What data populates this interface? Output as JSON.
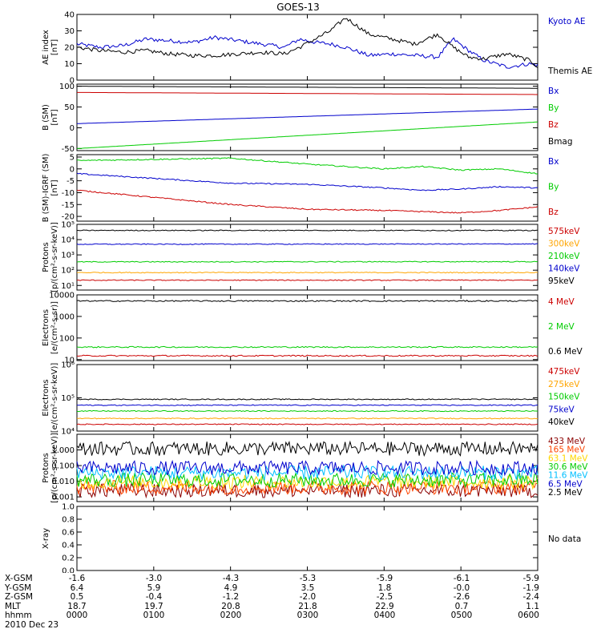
{
  "title": "GOES-13",
  "panels": [
    {
      "ylabel": [
        "AE index",
        "[nT]"
      ],
      "ylim": [
        0,
        40
      ],
      "ticks": [
        0,
        10,
        20,
        30,
        40
      ],
      "tick_labels": [
        "0",
        "10",
        "20",
        "30",
        "40"
      ],
      "scale": "linear",
      "legend": [
        {
          "label": "Kyoto AE",
          "color": "#0000cc"
        },
        {
          "label": "Themis AE",
          "color": "#000000"
        }
      ]
    },
    {
      "ylabel": [
        "B (SM)",
        "[nT]"
      ],
      "ylim": [
        -55,
        105
      ],
      "ticks": [
        -50,
        0,
        50,
        100
      ],
      "tick_labels": [
        "-50",
        "0",
        "50",
        "100"
      ],
      "scale": "linear",
      "legend": [
        {
          "label": "Bx",
          "color": "#0000cc"
        },
        {
          "label": "By",
          "color": "#00cc00"
        },
        {
          "label": "Bz",
          "color": "#cc0000"
        },
        {
          "label": "Bmag",
          "color": "#000000"
        }
      ]
    },
    {
      "ylabel": [
        "B (SM)-IGRF (SM)",
        "[nT]"
      ],
      "ylim": [
        -22,
        6
      ],
      "ticks": [
        -20,
        -15,
        -10,
        -5,
        0,
        5
      ],
      "tick_labels": [
        "-20",
        "-15",
        "-10",
        "-5",
        "0",
        "5"
      ],
      "scale": "linear",
      "legend": [
        {
          "label": "Bx",
          "color": "#0000cc"
        },
        {
          "label": "By",
          "color": "#00cc00"
        },
        {
          "label": "Bz",
          "color": "#cc0000"
        }
      ]
    },
    {
      "ylabel": [
        "Protons",
        "[p/(cm²-s-sr-keV)]"
      ],
      "ylim": [
        5,
        100000
      ],
      "ticks": [
        10,
        100,
        1000,
        10000,
        100000
      ],
      "tick_labels": [
        "10¹",
        "10²",
        "10³",
        "10⁴",
        "10⁵"
      ],
      "scale": "log",
      "legend": [
        {
          "label": "575keV",
          "color": "#cc0000"
        },
        {
          "label": "300keV",
          "color": "#ffa500"
        },
        {
          "label": "210keV",
          "color": "#00cc00"
        },
        {
          "label": "140keV",
          "color": "#0000cc"
        },
        {
          "label": "95keV",
          "color": "#000000"
        }
      ]
    },
    {
      "ylabel": [
        "Electrons",
        "[e/(cm²-s-sr)]"
      ],
      "ylim": [
        9,
        10000
      ],
      "ticks": [
        10,
        100,
        1000,
        10000
      ],
      "tick_labels": [
        "10",
        "100",
        "1000",
        "10000"
      ],
      "scale": "log",
      "legend": [
        {
          "label": "4 MeV",
          "color": "#cc0000"
        },
        {
          "label": "2 MeV",
          "color": "#00cc00"
        },
        {
          "label": "0.6 MeV",
          "color": "#000000"
        }
      ]
    },
    {
      "ylabel": [
        "Electrons",
        "[e/(cm²-s-sr-keV)]"
      ],
      "ylim": [
        10000,
        1000000
      ],
      "ticks": [
        10000,
        100000,
        1000000
      ],
      "tick_labels": [
        "10⁴",
        "10⁵",
        "10⁶"
      ],
      "scale": "log",
      "legend": [
        {
          "label": "475keV",
          "color": "#cc0000"
        },
        {
          "label": "275keV",
          "color": "#ffa500"
        },
        {
          "label": "150keV",
          "color": "#00cc00"
        },
        {
          "label": "75keV",
          "color": "#0000cc"
        },
        {
          "label": "40keV",
          "color": "#000000"
        }
      ]
    },
    {
      "ylabel": [
        "Protons",
        "[p/(cm²-s-sr-keV)]"
      ],
      "ylim": [
        0.0005,
        10
      ],
      "ticks": [
        0.001,
        0.01,
        0.1,
        1
      ],
      "tick_labels": [
        "0.001",
        "0.010",
        "0.100",
        "1.000"
      ],
      "scale": "log",
      "legend": [
        {
          "label": "433 MeV",
          "color": "#8b0000"
        },
        {
          "label": "165 MeV",
          "color": "#ff4500"
        },
        {
          "label": "63.1 MeV",
          "color": "#ffd700"
        },
        {
          "label": "30.6 MeV",
          "color": "#00cc00"
        },
        {
          "label": "11.6 MeV",
          "color": "#00bfff"
        },
        {
          "label": "6.5 MeV",
          "color": "#0000cc"
        },
        {
          "label": "2.5 MeV",
          "color": "#000000"
        }
      ]
    },
    {
      "ylabel": [
        "X-ray",
        ""
      ],
      "ylim": [
        0,
        1
      ],
      "ticks": [
        0,
        0.2,
        0.4,
        0.6,
        0.8,
        1.0
      ],
      "tick_labels": [
        "0.0",
        "0.2",
        "0.4",
        "0.6",
        "0.8",
        "1.0"
      ],
      "scale": "linear",
      "legend": [
        {
          "label": "No data",
          "color": "#000000"
        }
      ]
    }
  ],
  "chart_data": {
    "type": "line",
    "title": "GOES-13",
    "x_range_hours": [
      0,
      6
    ],
    "panels": [
      {
        "series": [
          {
            "name": "Kyoto AE",
            "x": [
              0,
              0.3,
              0.6,
              0.9,
              1.2,
              1.5,
              1.8,
              2.1,
              2.4,
              2.7,
              2.9,
              3.1,
              3.3,
              3.5,
              3.8,
              4.1,
              4.4,
              4.7,
              4.9,
              5.1,
              5.3,
              5.6,
              5.9,
              6.0
            ],
            "y": [
              22,
              20,
              21,
              25,
              24,
              23,
              26,
              24,
              22,
              20,
              25,
              23,
              22,
              20,
              15,
              16,
              15,
              14,
              25,
              18,
              12,
              8,
              10,
              9
            ]
          },
          {
            "name": "Themis AE",
            "x": [
              0,
              0.3,
              0.6,
              0.9,
              1.2,
              1.5,
              1.8,
              2.1,
              2.4,
              2.7,
              2.9,
              3.1,
              3.3,
              3.5,
              3.8,
              4.1,
              4.4,
              4.7,
              4.9,
              5.1,
              5.3,
              5.6,
              5.9,
              6.0
            ],
            "y": [
              20,
              18,
              17,
              18,
              16,
              15,
              15,
              16,
              17,
              16,
              20,
              25,
              30,
              38,
              28,
              25,
              22,
              28,
              20,
              14,
              13,
              16,
              12,
              8
            ]
          }
        ]
      },
      {
        "series": [
          {
            "name": "Bx",
            "x": [
              0,
              6
            ],
            "y": [
              10,
              45
            ]
          },
          {
            "name": "By",
            "x": [
              0,
              6
            ],
            "y": [
              -50,
              14
            ]
          },
          {
            "name": "Bz",
            "x": [
              0,
              6
            ],
            "y": [
              85,
              80
            ]
          },
          {
            "name": "Bmag",
            "x": [
              0,
              6
            ],
            "y": [
              100,
              95
            ]
          }
        ]
      },
      {
        "series": [
          {
            "name": "Bx",
            "x": [
              0,
              1,
              2,
              3,
              4,
              4.5,
              5,
              5.5,
              6
            ],
            "y": [
              -2,
              -4,
              -6,
              -6.5,
              -8,
              -9,
              -8.5,
              -7.5,
              -8
            ]
          },
          {
            "name": "By",
            "x": [
              0,
              1,
              2,
              3,
              4,
              4.5,
              5,
              5.5,
              6
            ],
            "y": [
              3.5,
              4,
              4.5,
              2,
              0,
              1,
              -0.5,
              0,
              -2
            ]
          },
          {
            "name": "Bz",
            "x": [
              0,
              1,
              2,
              3,
              4,
              4.5,
              5,
              5.5,
              6
            ],
            "y": [
              -9,
              -12,
              -15,
              -17,
              -17.5,
              -18,
              -18.5,
              -17.5,
              -16
            ]
          }
        ]
      },
      {
        "series": [
          {
            "name": "575keV",
            "x": [
              0,
              6
            ],
            "y": [
              22,
              22
            ]
          },
          {
            "name": "300keV",
            "x": [
              0,
              6
            ],
            "y": [
              70,
              70
            ]
          },
          {
            "name": "210keV",
            "x": [
              0,
              6
            ],
            "y": [
              350,
              360
            ]
          },
          {
            "name": "140keV",
            "x": [
              0,
              6
            ],
            "y": [
              5000,
              5200
            ]
          },
          {
            "name": "95keV",
            "x": [
              0,
              6
            ],
            "y": [
              40000,
              40000
            ]
          }
        ]
      },
      {
        "series": [
          {
            "name": "4 MeV",
            "x": [
              0,
              6
            ],
            "y": [
              15,
              15
            ]
          },
          {
            "name": "2 MeV",
            "x": [
              0,
              6
            ],
            "y": [
              38,
              38
            ]
          },
          {
            "name": "0.6 MeV",
            "x": [
              0,
              6
            ],
            "y": [
              5200,
              5200
            ]
          }
        ]
      },
      {
        "series": [
          {
            "name": "475keV",
            "x": [
              0,
              6
            ],
            "y": [
              16000,
              16000
            ]
          },
          {
            "name": "275keV",
            "x": [
              0,
              6
            ],
            "y": [
              24000,
              24000
            ]
          },
          {
            "name": "150keV",
            "x": [
              0,
              6
            ],
            "y": [
              40000,
              40000
            ]
          },
          {
            "name": "75keV",
            "x": [
              0,
              6
            ],
            "y": [
              60000,
              60000
            ]
          },
          {
            "name": "40keV",
            "x": [
              0,
              6
            ],
            "y": [
              90000,
              90000
            ]
          }
        ]
      },
      {
        "series": [
          {
            "name": "433 MeV",
            "x": [
              0,
              6
            ],
            "y": [
              0.0025,
              0.0025
            ]
          },
          {
            "name": "165 MeV",
            "x": [
              0,
              6
            ],
            "y": [
              0.004,
              0.004
            ]
          },
          {
            "name": "63.1 MeV",
            "x": [
              0,
              6
            ],
            "y": [
              0.009,
              0.009
            ]
          },
          {
            "name": "30.6 MeV",
            "x": [
              0,
              6
            ],
            "y": [
              0.012,
              0.012
            ]
          },
          {
            "name": "11.6 MeV",
            "x": [
              0,
              6
            ],
            "y": [
              0.035,
              0.035
            ]
          },
          {
            "name": "6.5 MeV",
            "x": [
              0,
              6
            ],
            "y": [
              0.07,
              0.07
            ]
          },
          {
            "name": "2.5 MeV",
            "x": [
              0,
              6
            ],
            "y": [
              1.2,
              1.2
            ]
          }
        ]
      },
      {
        "series": []
      }
    ]
  },
  "footer": {
    "rows": [
      {
        "label": "X-GSM",
        "values": [
          "-1.6",
          "-3.0",
          "-4.3",
          "-5.3",
          "-5.9",
          "-6.1",
          "-5.9"
        ]
      },
      {
        "label": "Y-GSM",
        "values": [
          "6.4",
          "5.9",
          "4.9",
          "3.5",
          "1.8",
          "-0.0",
          "-1.9"
        ]
      },
      {
        "label": "Z-GSM",
        "values": [
          "0.5",
          "-0.4",
          "-1.2",
          "-2.0",
          "-2.5",
          "-2.6",
          "-2.4"
        ]
      },
      {
        "label": "MLT",
        "values": [
          "18.7",
          "19.7",
          "20.8",
          "21.8",
          "22.9",
          "0.7",
          "1.1"
        ]
      },
      {
        "label": "hhmm",
        "values": [
          "0000",
          "0100",
          "0200",
          "0300",
          "0400",
          "0500",
          "0600"
        ]
      }
    ],
    "date": "2010 Dec 23"
  }
}
